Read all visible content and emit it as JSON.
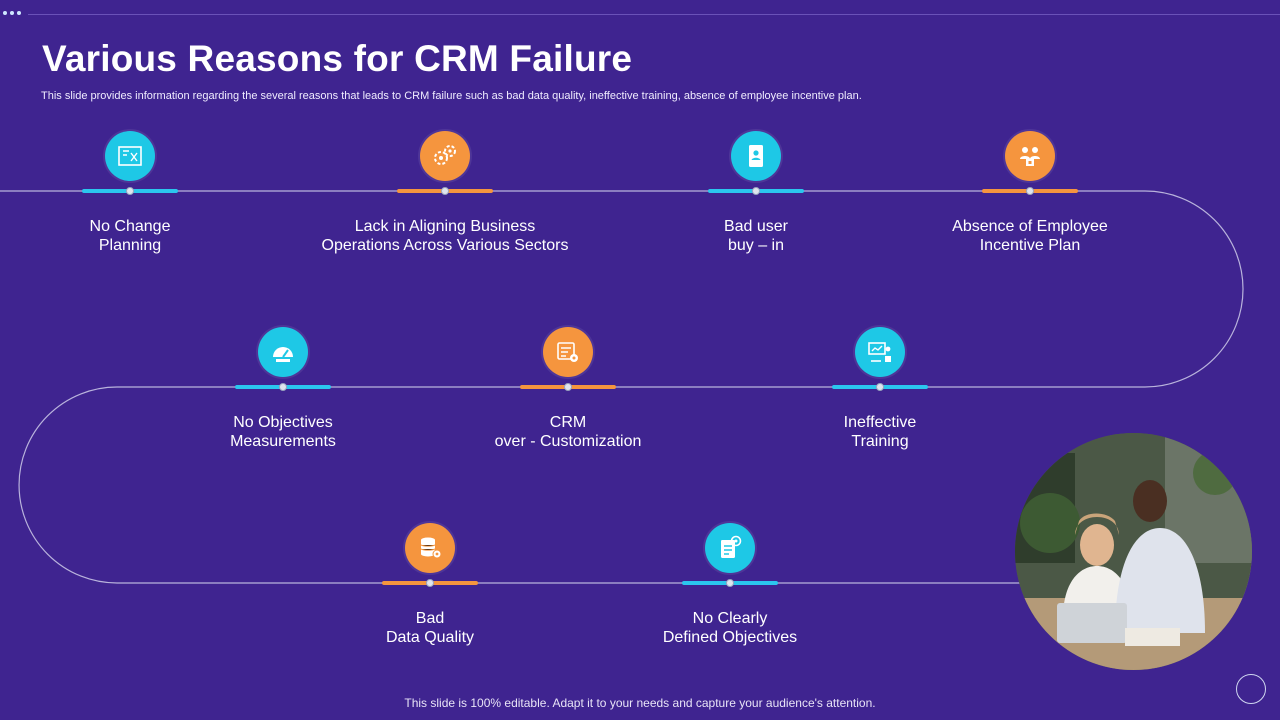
{
  "title": "Various Reasons for CRM Failure",
  "subtitle": "This slide provides information regarding the several reasons that leads to CRM failure such as bad data quality, ineffective training, absence of employee  incentive plan.",
  "footer": "This slide is 100% editable. Adapt it to your needs and capture your audience's attention.",
  "colors": {
    "background": "#3f2490",
    "cyan": "#1ec8e6",
    "orange": "#f5953e"
  },
  "steps": [
    {
      "icon": "blueprint-icon",
      "color": "cyan",
      "line1": "No Change",
      "line2": "Planning"
    },
    {
      "icon": "gears-icon",
      "color": "orange",
      "line1": "Lack in Aligning Business",
      "line2": "Operations Across Various Sectors"
    },
    {
      "icon": "user-document-icon",
      "color": "cyan",
      "line1": "Bad user",
      "line2": "buy – in"
    },
    {
      "icon": "employees-icon",
      "color": "orange",
      "line1": "Absence of Employee",
      "line2": "Incentive  Plan"
    },
    {
      "icon": "gauge-icon",
      "color": "cyan",
      "line1": "No Objectives",
      "line2": "Measurements"
    },
    {
      "icon": "customization-icon",
      "color": "orange",
      "line1": "CRM",
      "line2": "over - Customization"
    },
    {
      "icon": "training-icon",
      "color": "cyan",
      "line1": "Ineffective",
      "line2": "Training"
    },
    {
      "icon": "database-gear-icon",
      "color": "orange",
      "line1": "Bad",
      "line2": "Data Quality"
    },
    {
      "icon": "target-document-icon",
      "color": "cyan",
      "line1": "No Clearly",
      "line2": "Defined Objectives"
    }
  ]
}
